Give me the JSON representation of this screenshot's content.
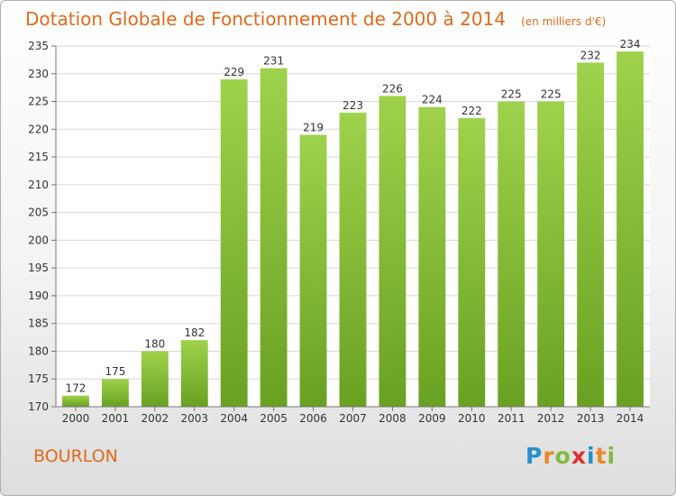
{
  "title": "Dotation Globale de Fonctionnement de 2000 à 2014",
  "unit": "(en milliers d'€)",
  "commune": "BOURLON",
  "logo": {
    "text": "Proxiti",
    "letters": [
      {
        "ch": "P",
        "color": "#2a8fcd"
      },
      {
        "ch": "r",
        "color": "#e8892a"
      },
      {
        "ch": "o",
        "color": "#82b83c"
      },
      {
        "ch": "x",
        "color": "#e0302f"
      },
      {
        "ch": "i",
        "color": "#2a8fcd"
      },
      {
        "ch": "t",
        "color": "#e8892a"
      },
      {
        "ch": "i",
        "color": "#82b83c"
      }
    ]
  },
  "colors": {
    "title": "#e06a1b",
    "bar_light": "#9fd24c",
    "bar_dark": "#69a122",
    "grid": "#d7d7d7",
    "axis": "#777777",
    "text": "#333333"
  },
  "chart_data": {
    "type": "bar",
    "categories": [
      "2000",
      "2001",
      "2002",
      "2003",
      "2004",
      "2005",
      "2006",
      "2007",
      "2008",
      "2009",
      "2010",
      "2011",
      "2012",
      "2013",
      "2014"
    ],
    "values": [
      172,
      175,
      180,
      182,
      229,
      231,
      219,
      223,
      226,
      224,
      222,
      225,
      225,
      232,
      234
    ],
    "ylim": [
      170,
      235
    ],
    "yticks": [
      170,
      175,
      180,
      185,
      190,
      195,
      200,
      205,
      210,
      215,
      220,
      225,
      230,
      235
    ],
    "grid": true,
    "xlabel": "",
    "ylabel": ""
  }
}
